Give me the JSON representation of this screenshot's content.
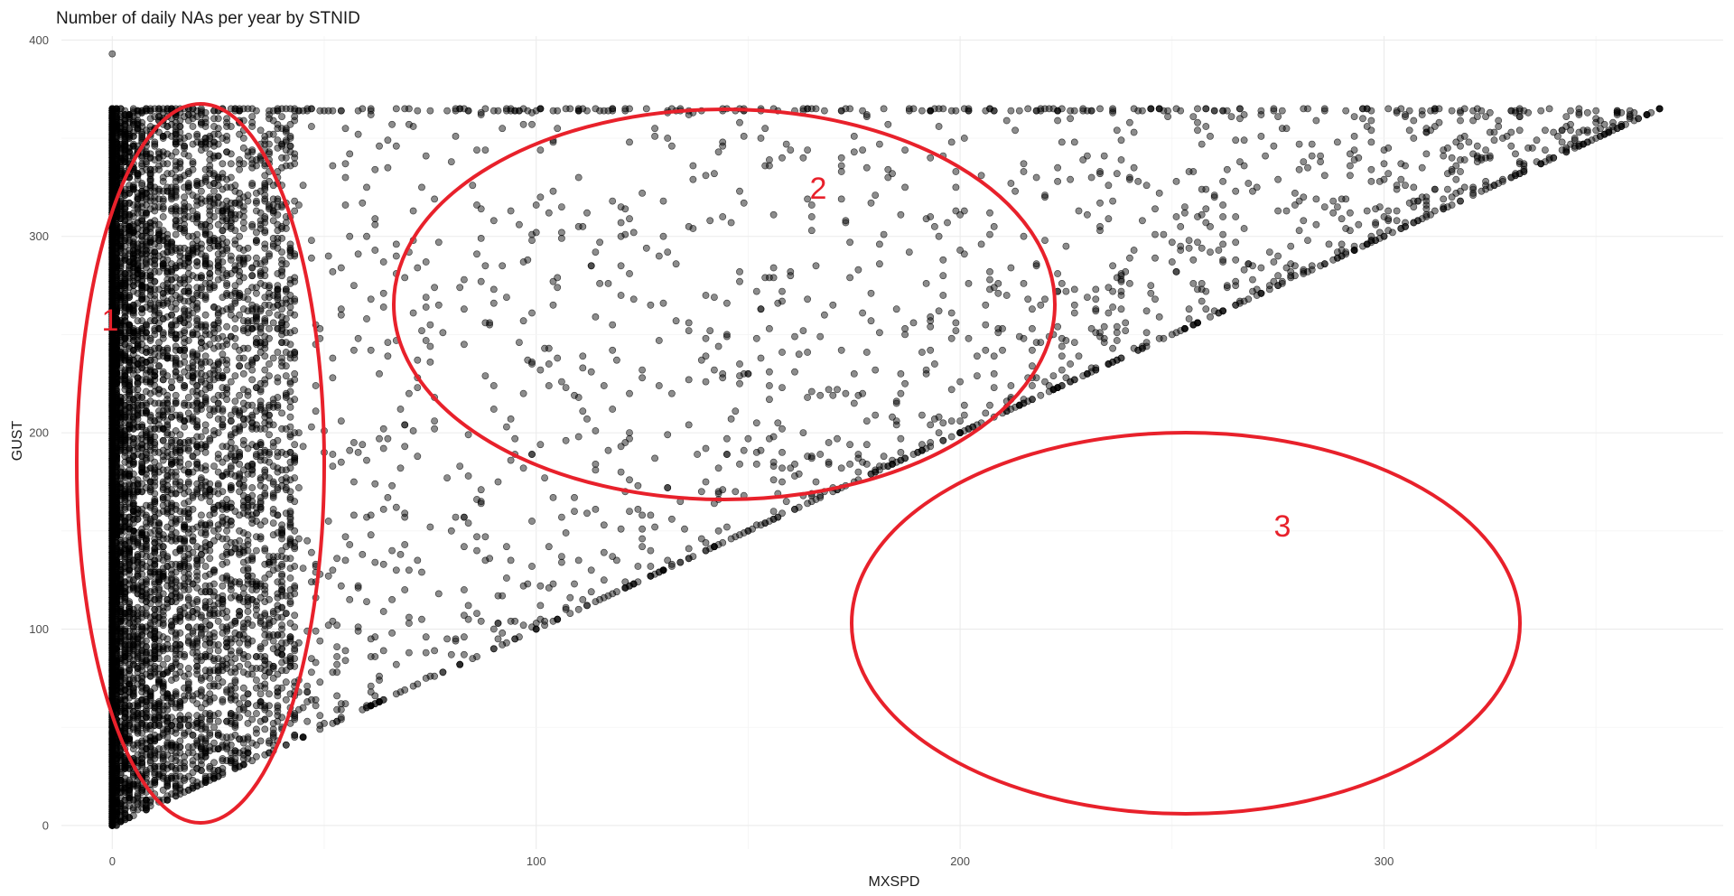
{
  "chart_data": {
    "type": "scatter",
    "title": "Number of daily NAs per year by STNID",
    "xlabel": "MXSPD",
    "ylabel": "GUST",
    "xlim": [
      -12,
      380
    ],
    "ylim": [
      -12,
      402
    ],
    "x_ticks": [
      0,
      100,
      200,
      300
    ],
    "y_ticks": [
      0,
      100,
      200,
      300,
      400
    ],
    "grid": true,
    "point_color": "#000000",
    "point_opacity": 0.45,
    "series": [
      {
        "points": [
          [
            0,
            393
          ],
          [
            0,
            365
          ],
          [
            0,
            300
          ],
          [
            0,
            250
          ],
          [
            0,
            200
          ],
          [
            0,
            150
          ],
          [
            0,
            100
          ],
          [
            0,
            50
          ],
          [
            0,
            10
          ],
          [
            0,
            0
          ],
          [
            3,
            340
          ],
          [
            5,
            280
          ],
          [
            8,
            210
          ],
          [
            10,
            150
          ],
          [
            12,
            90
          ],
          [
            15,
            40
          ],
          [
            18,
            25
          ],
          [
            25,
            330
          ],
          [
            30,
            270
          ],
          [
            35,
            190
          ],
          [
            40,
            120
          ],
          [
            45,
            60
          ],
          [
            60,
            300
          ],
          [
            70,
            220
          ],
          [
            80,
            150
          ],
          [
            90,
            100
          ],
          [
            110,
            330
          ],
          [
            120,
            270
          ],
          [
            130,
            300
          ],
          [
            145,
            250
          ],
          [
            150,
            230
          ],
          [
            160,
            280
          ],
          [
            175,
            230
          ],
          [
            215,
            300
          ],
          [
            240,
            330
          ],
          [
            270,
            325
          ],
          [
            295,
            360
          ],
          [
            315,
            345
          ],
          [
            100,
            100
          ],
          [
            150,
            150
          ],
          [
            200,
            200
          ],
          [
            250,
            250
          ],
          [
            300,
            300
          ],
          [
            340,
            340
          ],
          [
            365,
            365
          ]
        ]
      }
    ]
  },
  "annotations": [
    {
      "label": "1",
      "color": "#e8212b"
    },
    {
      "label": "2",
      "color": "#e8212b"
    },
    {
      "label": "3",
      "color": "#e8212b"
    }
  ]
}
